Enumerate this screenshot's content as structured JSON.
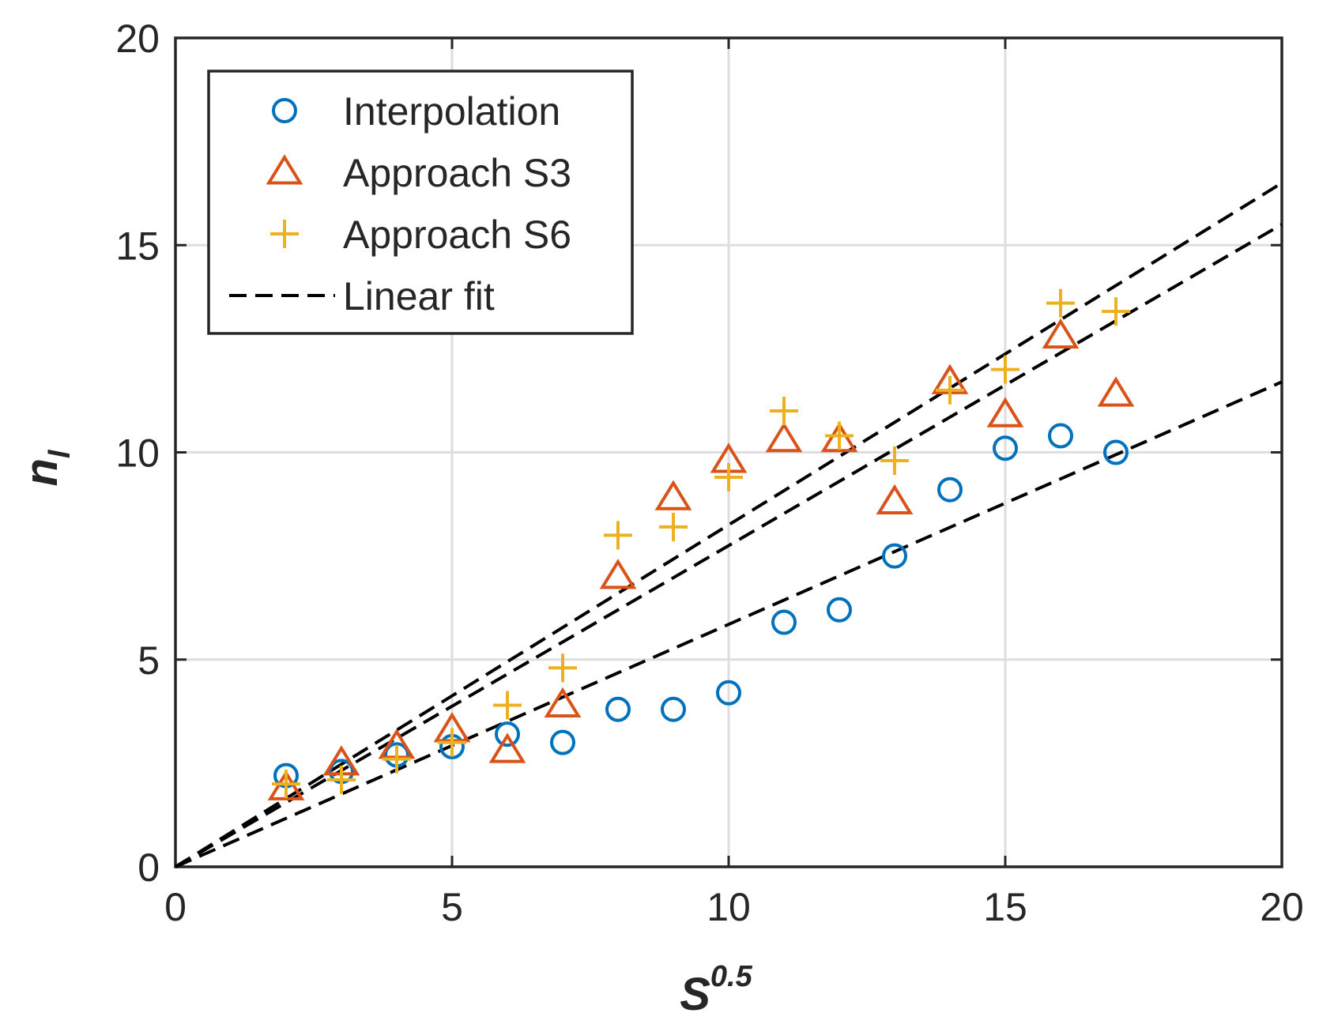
{
  "chart_data": {
    "type": "scatter",
    "title": "",
    "xlabel": "S",
    "xlabel_superscript": "0.5",
    "ylabel": "n",
    "ylabel_subscript": "l",
    "xlim": [
      0,
      20
    ],
    "ylim": [
      0,
      20
    ],
    "xticks": [
      0,
      5,
      10,
      15,
      20
    ],
    "yticks": [
      0,
      5,
      10,
      15,
      20
    ],
    "xtick_labels": [
      "0",
      "5",
      "10",
      "15",
      "20"
    ],
    "ytick_labels": [
      "0",
      "5",
      "10",
      "15",
      "20"
    ],
    "grid": true,
    "legend_position": "top-left",
    "series": [
      {
        "name": "Interpolation",
        "marker": "circle",
        "color": "#0072BD",
        "x": [
          2,
          3,
          4,
          5,
          6,
          7,
          8,
          9,
          10,
          11,
          12,
          13,
          14,
          15,
          16,
          17
        ],
        "y": [
          2.2,
          2.3,
          2.7,
          2.9,
          3.2,
          3.0,
          3.8,
          3.8,
          4.2,
          5.9,
          6.2,
          7.5,
          9.1,
          10.1,
          10.4,
          10.0
        ]
      },
      {
        "name": "Approach S3",
        "marker": "triangle",
        "color": "#D95319",
        "x": [
          2,
          3,
          4,
          5,
          6,
          7,
          8,
          9,
          10,
          11,
          12,
          13,
          14,
          15,
          16,
          17
        ],
        "y": [
          1.9,
          2.5,
          2.9,
          3.3,
          2.8,
          3.9,
          7.0,
          8.9,
          9.8,
          10.3,
          10.3,
          8.8,
          11.7,
          10.9,
          12.8,
          11.4
        ]
      },
      {
        "name": "Approach S6",
        "marker": "plus",
        "color": "#EDB120",
        "x": [
          2,
          3,
          4,
          5,
          6,
          7,
          8,
          9,
          10,
          11,
          12,
          13,
          14,
          15,
          16,
          17
        ],
        "y": [
          2.0,
          2.1,
          2.6,
          3.0,
          3.9,
          4.8,
          8.0,
          8.2,
          9.4,
          11.0,
          10.4,
          9.8,
          11.5,
          12.0,
          13.6,
          13.4
        ]
      }
    ],
    "fit_lines": [
      {
        "name": "Linear fit",
        "color": "#000000",
        "style": "dashed",
        "x": [
          0,
          20
        ],
        "y": [
          0,
          16.5
        ]
      },
      {
        "name": "Linear fit",
        "color": "#000000",
        "style": "dashed",
        "x": [
          0,
          20
        ],
        "y": [
          0,
          15.5
        ]
      },
      {
        "name": "Linear fit",
        "color": "#000000",
        "style": "dashed",
        "x": [
          0,
          20
        ],
        "y": [
          0,
          11.7
        ]
      }
    ],
    "legend": [
      {
        "label": "Interpolation",
        "marker": "circle",
        "color": "#0072BD"
      },
      {
        "label": "Approach S3",
        "marker": "triangle",
        "color": "#D95319"
      },
      {
        "label": "Approach S6",
        "marker": "plus",
        "color": "#EDB120"
      },
      {
        "label": "Linear fit",
        "marker": "dashed-line",
        "color": "#000000"
      }
    ]
  }
}
